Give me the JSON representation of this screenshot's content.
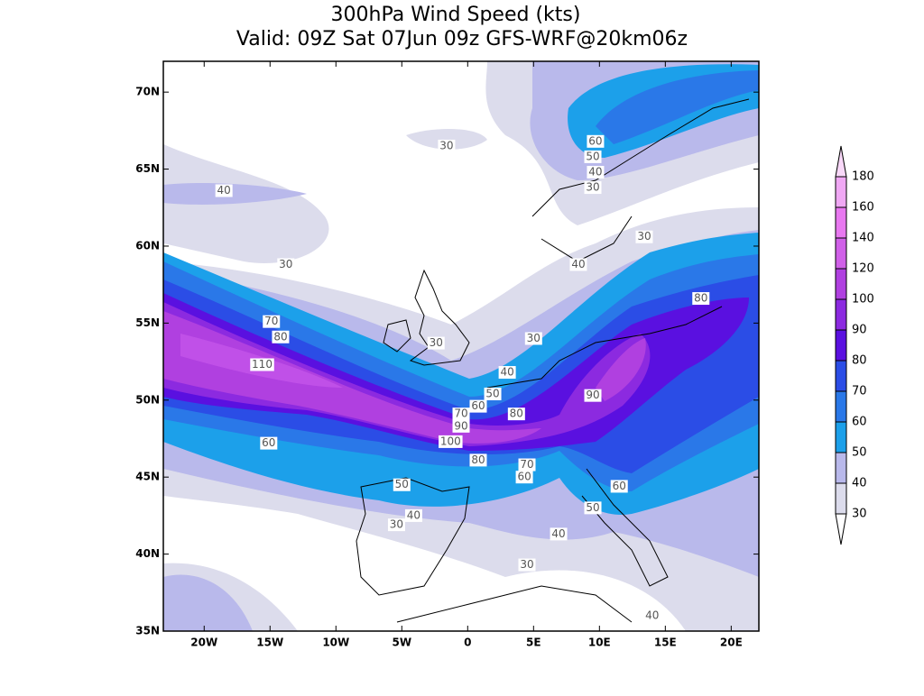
{
  "title": "300hPa Wind Speed (kts)",
  "subtitle": "Valid: 09Z Sat 07Jun 09z GFS-WRF@20km06z",
  "map": {
    "lonlim": [
      -23.1,
      22.1
    ],
    "latlim": [
      35,
      72
    ],
    "lon_ticks": [
      {
        "value": -20,
        "label": "20W"
      },
      {
        "value": -15,
        "label": "15W"
      },
      {
        "value": -10,
        "label": "10W"
      },
      {
        "value": -5,
        "label": "5W"
      },
      0,
      {
        "value": 5,
        "label": "5E"
      },
      {
        "value": 10,
        "label": "10E"
      },
      {
        "value": 15,
        "label": "15E"
      },
      {
        "value": 20,
        "label": "20E"
      }
    ],
    "lat_ticks": [
      {
        "value": 35,
        "label": "35N"
      },
      {
        "value": 40,
        "label": "40N"
      },
      {
        "value": 45,
        "label": "45N"
      },
      {
        "value": 50,
        "label": "50N"
      },
      {
        "value": 55,
        "label": "55N"
      },
      {
        "value": 60,
        "label": "60N"
      },
      {
        "value": 65,
        "label": "65N"
      },
      {
        "value": 70,
        "label": "70N"
      }
    ],
    "contour_labels": [
      {
        "value": 30,
        "lon": -1.6,
        "lat": 66.5
      },
      {
        "value": 60,
        "lon": 9.7,
        "lat": 66.8
      },
      {
        "value": 50,
        "lon": 9.5,
        "lat": 65.8
      },
      {
        "value": 40,
        "lon": 9.7,
        "lat": 64.8
      },
      {
        "value": 30,
        "lon": 9.5,
        "lat": 63.8
      },
      {
        "value": 40,
        "lon": -18.5,
        "lat": 63.6
      },
      {
        "value": 30,
        "lon": 13.4,
        "lat": 60.6
      },
      {
        "value": 30,
        "lon": -13.8,
        "lat": 58.8
      },
      {
        "value": 40,
        "lon": 8.4,
        "lat": 58.8
      },
      {
        "value": 80,
        "lon": 17.7,
        "lat": 56.6
      },
      {
        "value": 70,
        "lon": -14.9,
        "lat": 55.1
      },
      {
        "value": 80,
        "lon": -14.2,
        "lat": 54.1
      },
      {
        "value": 30,
        "lon": -2.4,
        "lat": 53.7
      },
      {
        "value": 30,
        "lon": 5.0,
        "lat": 54.0
      },
      {
        "value": 110,
        "lon": -15.6,
        "lat": 52.3
      },
      {
        "value": 40,
        "lon": 3.0,
        "lat": 51.8
      },
      {
        "value": 50,
        "lon": 1.9,
        "lat": 50.4
      },
      {
        "value": 90,
        "lon": 9.5,
        "lat": 50.3
      },
      {
        "value": 60,
        "lon": 0.8,
        "lat": 49.6
      },
      {
        "value": 70,
        "lon": -0.5,
        "lat": 49.1
      },
      {
        "value": 80,
        "lon": 3.7,
        "lat": 49.1
      },
      {
        "value": 90,
        "lon": -0.5,
        "lat": 48.3
      },
      {
        "value": 100,
        "lon": -1.3,
        "lat": 47.3
      },
      {
        "value": 60,
        "lon": -15.1,
        "lat": 47.2
      },
      {
        "value": 80,
        "lon": 0.8,
        "lat": 46.1
      },
      {
        "value": 70,
        "lon": 4.5,
        "lat": 45.8
      },
      {
        "value": 60,
        "lon": 4.3,
        "lat": 45.0
      },
      {
        "value": 50,
        "lon": -5.0,
        "lat": 44.5
      },
      {
        "value": 60,
        "lon": 11.5,
        "lat": 44.4
      },
      {
        "value": 40,
        "lon": -4.1,
        "lat": 42.5
      },
      {
        "value": 50,
        "lon": 9.5,
        "lat": 43.0
      },
      {
        "value": 30,
        "lon": -5.4,
        "lat": 41.9
      },
      {
        "value": 40,
        "lon": 6.9,
        "lat": 41.3
      },
      {
        "value": 30,
        "lon": 4.5,
        "lat": 39.3
      },
      {
        "value": 40,
        "lon": 14.0,
        "lat": 36.0
      }
    ]
  },
  "colorbar": {
    "levels": [
      30,
      40,
      50,
      60,
      70,
      80,
      90,
      100,
      120,
      140,
      160,
      180
    ],
    "colors": [
      "#dcdcec",
      "#b9b9eb",
      "#1ca0ea",
      "#2a78e8",
      "#2b4de6",
      "#5a10e0",
      "#8c2ae0",
      "#b040e0",
      "#d060e8",
      "#e878f0",
      "#f0a8f4",
      "#f8d8f8"
    ]
  }
}
